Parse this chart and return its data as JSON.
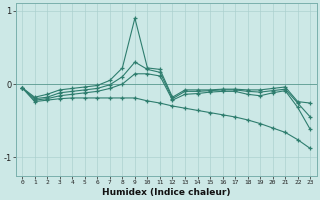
{
  "xlabel": "Humidex (Indice chaleur)",
  "x_values": [
    0,
    1,
    2,
    3,
    4,
    5,
    6,
    7,
    8,
    9,
    10,
    11,
    12,
    13,
    14,
    15,
    16,
    17,
    18,
    19,
    20,
    21,
    22,
    23
  ],
  "series_y": [
    [
      -0.05,
      -0.18,
      -0.14,
      -0.08,
      -0.06,
      -0.04,
      -0.02,
      0.05,
      0.22,
      0.9,
      0.22,
      0.2,
      -0.18,
      -0.08,
      -0.08,
      -0.08,
      -0.07,
      -0.07,
      -0.08,
      -0.08,
      -0.06,
      -0.04,
      -0.24,
      -0.26
    ],
    [
      -0.05,
      -0.2,
      -0.18,
      -0.12,
      -0.1,
      -0.08,
      -0.06,
      -0.01,
      0.1,
      0.3,
      0.2,
      0.16,
      -0.2,
      -0.1,
      -0.1,
      -0.09,
      -0.08,
      -0.08,
      -0.1,
      -0.11,
      -0.09,
      -0.07,
      -0.26,
      -0.45
    ],
    [
      -0.05,
      -0.22,
      -0.2,
      -0.16,
      -0.14,
      -0.12,
      -0.1,
      -0.06,
      0.0,
      0.14,
      0.14,
      0.11,
      -0.22,
      -0.14,
      -0.13,
      -0.11,
      -0.1,
      -0.1,
      -0.14,
      -0.16,
      -0.12,
      -0.09,
      -0.32,
      -0.62
    ],
    [
      -0.05,
      -0.24,
      -0.22,
      -0.2,
      -0.19,
      -0.19,
      -0.19,
      -0.19,
      -0.19,
      -0.19,
      -0.23,
      -0.26,
      -0.3,
      -0.33,
      -0.36,
      -0.39,
      -0.42,
      -0.45,
      -0.49,
      -0.54,
      -0.6,
      -0.66,
      -0.76,
      -0.88
    ]
  ],
  "ylim": [
    -1.25,
    1.1
  ],
  "yticks": [
    -1,
    0,
    1
  ],
  "xlim": [
    -0.5,
    23.5
  ],
  "bg_color": "#cce8e6",
  "grid_color": "#aacfcd",
  "line_color": "#2e7d6e",
  "figwidth": 3.2,
  "figheight": 2.0,
  "dpi": 100
}
